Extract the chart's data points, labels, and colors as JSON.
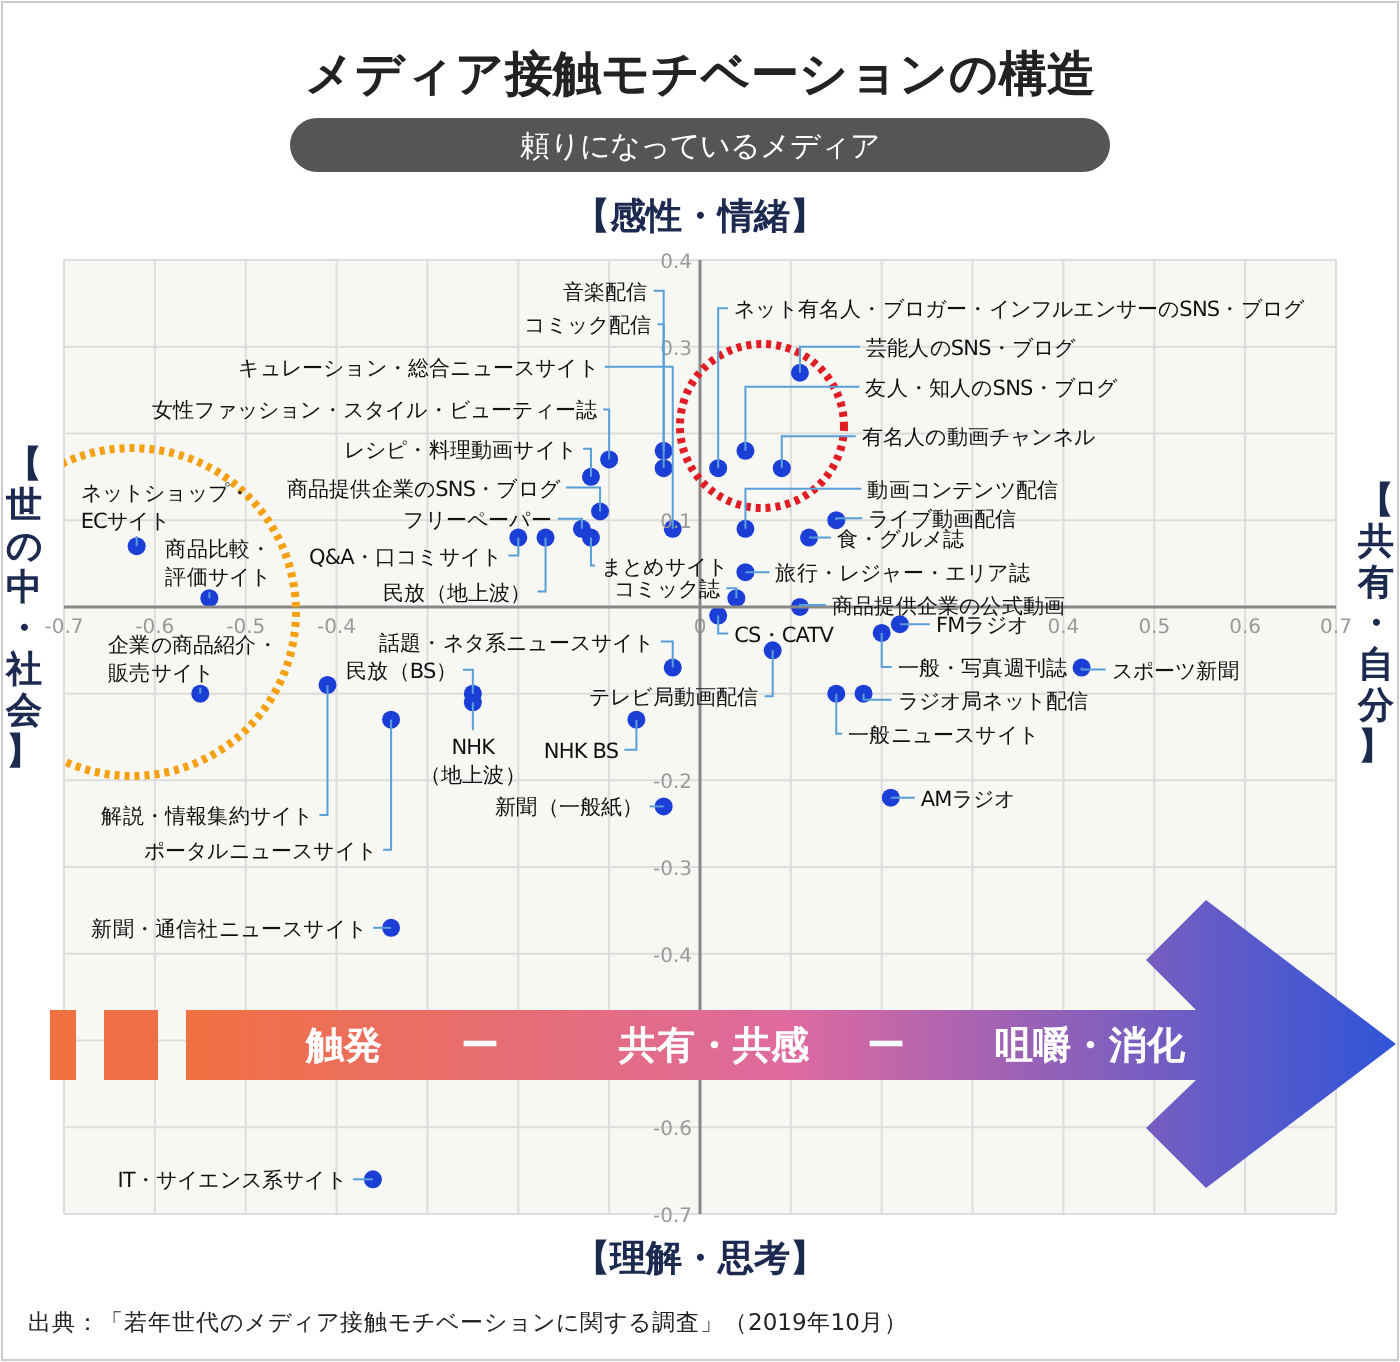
{
  "chart_data": {
    "type": "scatter",
    "title": "メディア接触モチベーションの構造",
    "subtitle": "頼りになっているメディア",
    "xlim": [
      -0.7,
      0.7
    ],
    "ylim": [
      -0.7,
      0.4
    ],
    "xticks": [
      -0.7,
      -0.6,
      -0.5,
      -0.4,
      {
        "value": -0.3,
        "label": null
      },
      {
        "value": -0.2,
        "label": null
      },
      {
        "value": -0.1,
        "label": null
      },
      0,
      {
        "value": 0.1,
        "label": null
      },
      {
        "value": 0.2,
        "label": null
      },
      {
        "value": 0.3,
        "label": null
      },
      0.4,
      0.5,
      0.6,
      0.7
    ],
    "yticks": [
      0.4,
      0.3,
      {
        "value": 0.2,
        "label": null
      },
      0.1,
      {
        "value": 0,
        "label": null
      },
      {
        "value": -0.1,
        "label": null
      },
      -0.2,
      -0.3,
      -0.4,
      {
        "value": -0.5,
        "label": null
      },
      -0.6,
      -0.7
    ],
    "grid": true,
    "legend": false,
    "marker": "circle",
    "series": [
      {
        "color": "#1b3fd6",
        "x": [
          -0.04,
          -0.04,
          -0.03,
          -0.1,
          -0.12,
          -0.11,
          -0.13,
          -0.12,
          0.04,
          -0.2,
          -0.17,
          -0.62,
          -0.54,
          -0.55,
          -0.03,
          -0.41,
          -0.34,
          -0.25,
          -0.25,
          -0.07,
          0.08,
          -0.04,
          -0.34,
          -0.36,
          0.02,
          0.11,
          0.05,
          0.09,
          0.05,
          0.15,
          0.12,
          0.05,
          0.11,
          0.02,
          0.22,
          0.2,
          0.42,
          0.18,
          0.15,
          0.21
        ],
        "values": [
          0.18,
          0.16,
          0.09,
          0.17,
          0.15,
          0.11,
          0.09,
          0.08,
          0.01,
          0.08,
          0.08,
          0.07,
          0.01,
          -0.1,
          -0.07,
          -0.09,
          -0.13,
          -0.1,
          -0.11,
          -0.13,
          -0.05,
          -0.23,
          -0.37,
          -0.66,
          0.16,
          0.27,
          0.18,
          0.16,
          0.09,
          0.1,
          0.08,
          0.04,
          0.0,
          -0.01,
          -0.02,
          -0.03,
          -0.07,
          -0.1,
          -0.1,
          -0.22
        ]
      }
    ],
    "annotations": [
      "【感性・情緒】",
      "【理解・思考】",
      "【世の中・社会】",
      "【共有・自分】",
      "触発",
      "ー",
      "共有・共感",
      "ー",
      "咀嚼・消化",
      "出典：「若年世代のメディア接触モチベーションに関する調査」（2019年10月）",
      {
        "text": "音楽配信",
        "x": -0.04,
        "y": 0.18
      },
      {
        "text": "コミック配信",
        "x": -0.04,
        "y": 0.16
      },
      {
        "text": "キュレーション・総合ニュースサイト",
        "x": -0.03,
        "y": 0.09
      },
      {
        "text": "女性ファッション・スタイル・ビューティー誌",
        "x": -0.1,
        "y": 0.17
      },
      {
        "text": "レシピ・料理動画サイト",
        "x": -0.12,
        "y": 0.15
      },
      {
        "text": "商品提供企業のSNS・ブログ",
        "x": -0.11,
        "y": 0.11
      },
      {
        "text": "フリーペーパー",
        "x": -0.13,
        "y": 0.09
      },
      {
        "text": "まとめサイト",
        "x": -0.12,
        "y": 0.08
      },
      {
        "text": "コミック誌",
        "x": 0.04,
        "y": 0.01
      },
      {
        "text": "Q&A・口コミサイト",
        "x": -0.2,
        "y": 0.08
      },
      {
        "text": "民放（地上波）",
        "x": -0.17,
        "y": 0.08
      },
      {
        "text": "ネットショップ・ECサイト",
        "x": -0.62,
        "y": 0.07
      },
      {
        "text": "商品比較・評価サイト",
        "x": -0.54,
        "y": 0.01
      },
      {
        "text": "企業の商品紹介・販売サイト",
        "x": -0.55,
        "y": -0.1
      },
      {
        "text": "話題・ネタ系ニュースサイト",
        "x": -0.03,
        "y": -0.07
      },
      {
        "text": "解説・情報集約サイト",
        "x": -0.41,
        "y": -0.09
      },
      {
        "text": "ポータルニュースサイト",
        "x": -0.34,
        "y": -0.13
      },
      {
        "text": "民放（BS）",
        "x": -0.25,
        "y": -0.1
      },
      {
        "text": "NHK（地上波）",
        "x": -0.25,
        "y": -0.11
      },
      {
        "text": "NHK BS",
        "x": -0.07,
        "y": -0.13
      },
      {
        "text": "テレビ局動画配信",
        "x": 0.08,
        "y": -0.05
      },
      {
        "text": "新聞（一般紙）",
        "x": -0.04,
        "y": -0.23
      },
      {
        "text": "新聞・通信社ニュースサイト",
        "x": -0.34,
        "y": -0.37
      },
      {
        "text": "IT・サイエンス系サイト",
        "x": -0.36,
        "y": -0.66
      },
      {
        "text": "ネット有名人・ブロガー・インフルエンサーのSNS・ブログ",
        "x": 0.02,
        "y": 0.16
      },
      {
        "text": "芸能人のSNS・ブログ",
        "x": 0.11,
        "y": 0.27
      },
      {
        "text": "友人・知人のSNS・ブログ",
        "x": 0.05,
        "y": 0.18
      },
      {
        "text": "有名人の動画チャンネル",
        "x": 0.09,
        "y": 0.16
      },
      {
        "text": "動画コンテンツ配信",
        "x": 0.05,
        "y": 0.09
      },
      {
        "text": "ライブ動画配信",
        "x": 0.15,
        "y": 0.1
      },
      {
        "text": "食・グルメ誌",
        "x": 0.12,
        "y": 0.08
      },
      {
        "text": "旅行・レジャー・エリア誌",
        "x": 0.05,
        "y": 0.04
      },
      {
        "text": "商品提供企業の公式動画",
        "x": 0.11,
        "y": 0.0
      },
      {
        "text": "CS・CATV",
        "x": 0.02,
        "y": -0.01
      },
      {
        "text": "FMラジオ",
        "x": 0.22,
        "y": -0.02
      },
      {
        "text": "一般・写真週刊誌",
        "x": 0.2,
        "y": -0.03
      },
      {
        "text": "スポーツ新聞",
        "x": 0.42,
        "y": -0.07
      },
      {
        "text": "ラジオ局ネット配信",
        "x": 0.18,
        "y": -0.1
      },
      {
        "text": "一般ニュースサイト",
        "x": 0.15,
        "y": -0.1
      },
      {
        "text": "AMラジオ",
        "x": 0.21,
        "y": -0.22
      }
    ]
  }
}
